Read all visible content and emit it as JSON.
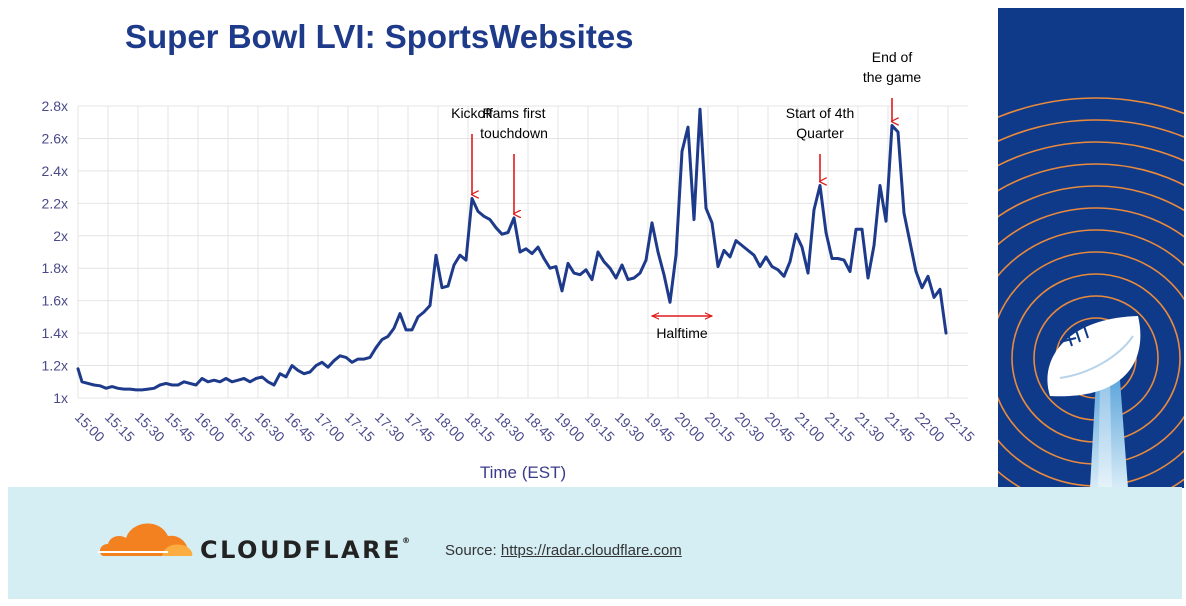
{
  "chart_data": {
    "type": "line",
    "title": "Super Bowl LVI: SportsWebsites",
    "xlabel": "Time (EST)",
    "ylabel": "",
    "ylim": [
      1,
      2.8
    ],
    "xlim": [
      "15:00",
      "22:25"
    ],
    "yticks": [
      {
        "value": 1,
        "label": "1x"
      },
      {
        "value": 1.2,
        "label": "1.2x"
      },
      {
        "value": 1.4,
        "label": "1.4x"
      },
      {
        "value": 1.6,
        "label": "1.6x"
      },
      {
        "value": 1.8,
        "label": "1.8x"
      },
      {
        "value": 2,
        "label": "2x"
      },
      {
        "value": 2.2,
        "label": "2.2x"
      },
      {
        "value": 2.4,
        "label": "2.4x"
      },
      {
        "value": 2.6,
        "label": "2.6x"
      },
      {
        "value": 2.8,
        "label": "2.8x"
      }
    ],
    "xticks": [
      "15:00",
      "15:15",
      "15:30",
      "15:45",
      "16:00",
      "16:15",
      "16:30",
      "16:45",
      "17:00",
      "17:15",
      "17:30",
      "17:45",
      "18:00",
      "18:15",
      "18:30",
      "18:45",
      "19:00",
      "19:15",
      "19:30",
      "19:45",
      "20:00",
      "20:15",
      "20:30",
      "20:45",
      "21:00",
      "21:15",
      "21:30",
      "21:45",
      "22:00",
      "22:15"
    ],
    "grid": true,
    "line_color": "#1e3a8a",
    "series": [
      {
        "values": [
          [
            "15:00",
            1.18
          ],
          [
            "15:02",
            1.1
          ],
          [
            "15:05",
            1.09
          ],
          [
            "15:08",
            1.08
          ],
          [
            "15:11",
            1.075
          ],
          [
            "15:14",
            1.06
          ],
          [
            "15:17",
            1.07
          ],
          [
            "15:20",
            1.06
          ],
          [
            "15:23",
            1.055
          ],
          [
            "15:26",
            1.055
          ],
          [
            "15:29",
            1.05
          ],
          [
            "15:32",
            1.05
          ],
          [
            "15:35",
            1.055
          ],
          [
            "15:38",
            1.06
          ],
          [
            "15:41",
            1.08
          ],
          [
            "15:44",
            1.09
          ],
          [
            "15:47",
            1.08
          ],
          [
            "15:50",
            1.08
          ],
          [
            "15:53",
            1.1
          ],
          [
            "15:56",
            1.09
          ],
          [
            "15:59",
            1.08
          ],
          [
            "16:02",
            1.12
          ],
          [
            "16:05",
            1.1
          ],
          [
            "16:08",
            1.11
          ],
          [
            "16:11",
            1.1
          ],
          [
            "16:14",
            1.12
          ],
          [
            "16:17",
            1.1
          ],
          [
            "16:20",
            1.11
          ],
          [
            "16:23",
            1.12
          ],
          [
            "16:26",
            1.1
          ],
          [
            "16:29",
            1.12
          ],
          [
            "16:32",
            1.13
          ],
          [
            "16:35",
            1.1
          ],
          [
            "16:38",
            1.08
          ],
          [
            "16:41",
            1.15
          ],
          [
            "16:44",
            1.13
          ],
          [
            "16:47",
            1.2
          ],
          [
            "16:50",
            1.17
          ],
          [
            "16:53",
            1.15
          ],
          [
            "16:56",
            1.16
          ],
          [
            "16:59",
            1.2
          ],
          [
            "17:02",
            1.22
          ],
          [
            "17:05",
            1.19
          ],
          [
            "17:08",
            1.23
          ],
          [
            "17:11",
            1.26
          ],
          [
            "17:14",
            1.25
          ],
          [
            "17:17",
            1.22
          ],
          [
            "17:20",
            1.24
          ],
          [
            "17:23",
            1.24
          ],
          [
            "17:26",
            1.25
          ],
          [
            "17:29",
            1.31
          ],
          [
            "17:32",
            1.36
          ],
          [
            "17:35",
            1.38
          ],
          [
            "17:38",
            1.43
          ],
          [
            "17:41",
            1.52
          ],
          [
            "17:44",
            1.42
          ],
          [
            "17:47",
            1.42
          ],
          [
            "17:50",
            1.5
          ],
          [
            "17:53",
            1.53
          ],
          [
            "17:56",
            1.57
          ],
          [
            "17:59",
            1.88
          ],
          [
            "18:02",
            1.68
          ],
          [
            "18:05",
            1.69
          ],
          [
            "18:08",
            1.82
          ],
          [
            "18:11",
            1.88
          ],
          [
            "18:14",
            1.85
          ],
          [
            "18:17",
            2.23
          ],
          [
            "18:20",
            2.15
          ],
          [
            "18:23",
            2.12
          ],
          [
            "18:26",
            2.1
          ],
          [
            "18:29",
            2.05
          ],
          [
            "18:32",
            2.01
          ],
          [
            "18:35",
            2.02
          ],
          [
            "18:38",
            2.11
          ],
          [
            "18:41",
            1.9
          ],
          [
            "18:44",
            1.92
          ],
          [
            "18:47",
            1.89
          ],
          [
            "18:50",
            1.93
          ],
          [
            "18:53",
            1.86
          ],
          [
            "18:56",
            1.8
          ],
          [
            "18:59",
            1.81
          ],
          [
            "19:02",
            1.66
          ],
          [
            "19:05",
            1.83
          ],
          [
            "19:08",
            1.77
          ],
          [
            "19:11",
            1.76
          ],
          [
            "19:14",
            1.79
          ],
          [
            "19:17",
            1.73
          ],
          [
            "19:20",
            1.9
          ],
          [
            "19:23",
            1.84
          ],
          [
            "19:26",
            1.8
          ],
          [
            "19:29",
            1.74
          ],
          [
            "19:32",
            1.82
          ],
          [
            "19:35",
            1.73
          ],
          [
            "19:38",
            1.74
          ],
          [
            "19:41",
            1.77
          ],
          [
            "19:44",
            1.85
          ],
          [
            "19:47",
            2.08
          ],
          [
            "19:50",
            1.9
          ],
          [
            "19:53",
            1.76
          ],
          [
            "19:56",
            1.59
          ],
          [
            "19:59",
            1.88
          ],
          [
            "20:02",
            2.52
          ],
          [
            "20:05",
            2.67
          ],
          [
            "20:08",
            2.1
          ],
          [
            "20:11",
            2.78
          ],
          [
            "20:14",
            2.17
          ],
          [
            "20:17",
            2.08
          ],
          [
            "20:20",
            1.81
          ],
          [
            "20:23",
            1.91
          ],
          [
            "20:26",
            1.87
          ],
          [
            "20:29",
            1.97
          ],
          [
            "20:32",
            1.94
          ],
          [
            "20:35",
            1.91
          ],
          [
            "20:38",
            1.88
          ],
          [
            "20:41",
            1.81
          ],
          [
            "20:44",
            1.87
          ],
          [
            "20:47",
            1.81
          ],
          [
            "20:50",
            1.79
          ],
          [
            "20:53",
            1.75
          ],
          [
            "20:56",
            1.84
          ],
          [
            "20:59",
            2.01
          ],
          [
            "21:02",
            1.93
          ],
          [
            "21:05",
            1.77
          ],
          [
            "21:08",
            2.16
          ],
          [
            "21:11",
            2.31
          ],
          [
            "21:14",
            2.02
          ],
          [
            "21:17",
            1.86
          ],
          [
            "21:20",
            1.86
          ],
          [
            "21:23",
            1.85
          ],
          [
            "21:26",
            1.78
          ],
          [
            "21:29",
            2.04
          ],
          [
            "21:32",
            2.04
          ],
          [
            "21:35",
            1.74
          ],
          [
            "21:38",
            1.94
          ],
          [
            "21:41",
            2.31
          ],
          [
            "21:44",
            2.09
          ],
          [
            "21:47",
            2.68
          ],
          [
            "21:50",
            2.64
          ],
          [
            "21:53",
            2.14
          ],
          [
            "21:56",
            1.96
          ],
          [
            "21:59",
            1.78
          ],
          [
            "22:02",
            1.68
          ],
          [
            "22:05",
            1.75
          ],
          [
            "22:08",
            1.62
          ],
          [
            "22:11",
            1.67
          ],
          [
            "22:14",
            1.4
          ]
        ]
      }
    ],
    "annotations": [
      {
        "lines": [
          "Kickoff"
        ],
        "at": "18:17",
        "value": 2.23
      },
      {
        "lines": [
          "Rams first",
          "touchdown"
        ],
        "at": "18:38",
        "value": 2.11
      },
      {
        "lines": [
          "Halftime"
        ],
        "range": [
          "19:47",
          "20:17"
        ],
        "value": 1.55
      },
      {
        "lines": [
          "Start of 4th",
          "Quarter"
        ],
        "at": "21:11",
        "value": 2.31
      },
      {
        "lines": [
          "End of",
          "the game"
        ],
        "at": "21:47",
        "value": 2.68
      }
    ]
  },
  "footer": {
    "brand": "CLOUDFLARE",
    "brand_mark": "®",
    "source_label": "Source:",
    "source_url": "https://radar.cloudflare.com"
  },
  "colors": {
    "navy": "#1e3a8a",
    "panel_blue": "#0f3a8a",
    "ring_orange": "#e98a3c",
    "footer_bg": "#d4eef3",
    "brand_orange": "#f48120",
    "annotation_red": "#e01b1b"
  },
  "icons": {
    "logo": "cloudflare-cloud-icon",
    "trophy": "trophy-icon"
  }
}
